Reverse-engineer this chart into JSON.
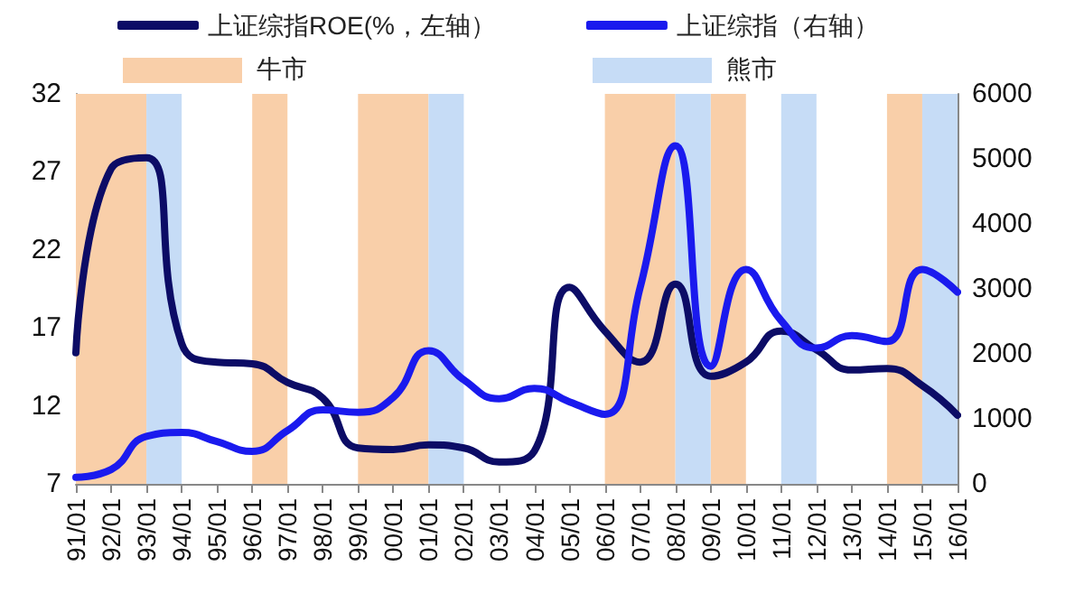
{
  "chart_data": {
    "type": "line",
    "categories": [
      "91/01",
      "92/01",
      "93/01",
      "94/01",
      "95/01",
      "96/01",
      "97/01",
      "98/01",
      "99/01",
      "00/01",
      "01/01",
      "02/01",
      "03/01",
      "04/01",
      "05/01",
      "06/01",
      "07/01",
      "08/01",
      "09/01",
      "10/01",
      "11/01",
      "12/01",
      "13/01",
      "14/01",
      "15/01",
      "16/01"
    ],
    "series": [
      {
        "name": "上证综指ROE(%，左轴）",
        "color": "#0c0c66",
        "values": [
          15.4,
          27.2,
          27.9,
          16.0,
          14.8,
          14.7,
          13.5,
          12.5,
          9.3,
          9.2,
          9.5,
          9.3,
          8.4,
          9.1,
          19.6,
          16.8,
          14.8,
          19.8,
          13.9,
          14.8,
          16.8,
          15.6,
          14.3,
          14.4,
          13.3,
          11.4
        ]
      },
      {
        "name": "上证综指（右轴）",
        "color": "#1a1aee",
        "axis": "y2",
        "values": [
          100,
          220,
          730,
          790,
          650,
          500,
          820,
          1140,
          1100,
          1330,
          2050,
          1600,
          1310,
          1470,
          1260,
          1070,
          3020,
          5200,
          1810,
          3300,
          2510,
          2090,
          2280,
          2190,
          3300,
          2950
        ]
      }
    ],
    "ylim": [
      7,
      32
    ],
    "yticks": [
      7,
      12,
      17,
      22,
      27,
      32
    ],
    "y2lim": [
      0,
      6000
    ],
    "y2ticks": [
      0,
      1000,
      2000,
      3000,
      4000,
      5000,
      6000
    ],
    "bands": [
      {
        "axis": "x",
        "from": "91/01",
        "to": "93/01",
        "label": "牛市",
        "color": "#f9cfa9"
      },
      {
        "axis": "x",
        "from": "93/01",
        "to": "94/01",
        "label": "熊市",
        "color": "#c6dcf6"
      },
      {
        "axis": "x",
        "from": "96/01",
        "to": "97/01",
        "color": "#f9cfa9"
      },
      {
        "axis": "x",
        "from": "99/01",
        "to": "01/01",
        "color": "#f9cfa9"
      },
      {
        "axis": "x",
        "from": "01/01",
        "to": "02/01",
        "color": "#c6dcf6"
      },
      {
        "axis": "x",
        "from": "06/01",
        "to": "08/01",
        "color": "#f9cfa9"
      },
      {
        "axis": "x",
        "from": "08/01",
        "to": "09/01",
        "color": "#c6dcf6"
      },
      {
        "axis": "x",
        "from": "09/01",
        "to": "10/01",
        "color": "#f9cfa9"
      },
      {
        "axis": "x",
        "from": "11/01",
        "to": "12/01",
        "color": "#c6dcf6"
      },
      {
        "axis": "x",
        "from": "14/01",
        "to": "15/01",
        "color": "#f9cfa9"
      },
      {
        "axis": "x",
        "from": "15/01",
        "to": "16/01",
        "color": "#c6dcf6"
      }
    ],
    "legend": "top",
    "grid": false,
    "marker": "none",
    "line_style": "solid"
  }
}
